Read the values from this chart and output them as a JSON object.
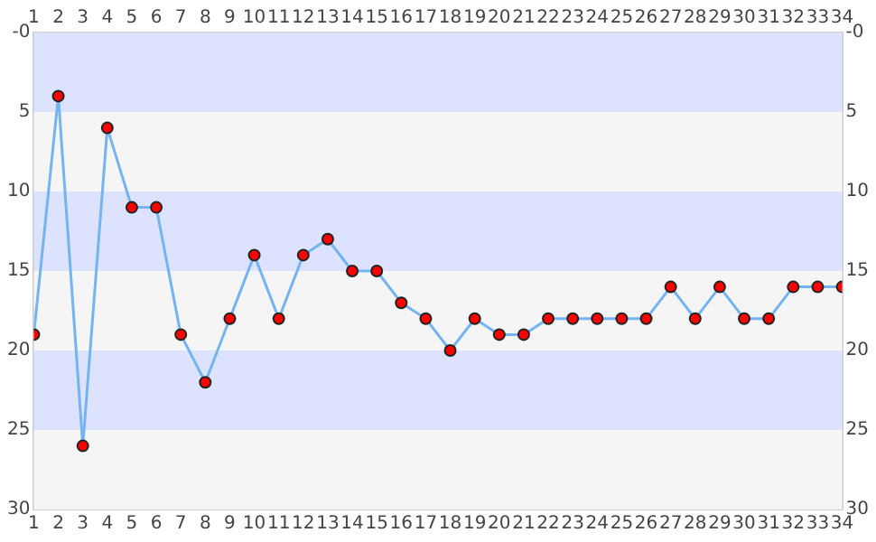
{
  "chart_data": {
    "type": "line",
    "x": [
      1,
      2,
      3,
      4,
      5,
      6,
      7,
      8,
      9,
      10,
      11,
      12,
      13,
      14,
      15,
      16,
      17,
      18,
      19,
      20,
      21,
      22,
      23,
      24,
      25,
      26,
      27,
      28,
      29,
      30,
      31,
      32,
      33,
      34
    ],
    "series": [
      {
        "color": "#74b4f0",
        "colors": [
          "#ff0000",
          "#ff0000",
          "#ff0000",
          "#ff0000",
          "#ff0000",
          "#ff0000",
          "#ff0000",
          "#ff0000",
          "#ff0000",
          "#ff0000",
          "#ff0000",
          "#ff0000",
          "#ff0000",
          "#ff0000",
          "#ff0000",
          "#ff0000",
          "#ff0000",
          "#ff0000",
          "#ff0000",
          "#ff0000",
          "#ff0000",
          "#ff0000",
          "#ff0000",
          "#ff0000",
          "#ff0000",
          "#ff0000",
          "#ff0000",
          "#ff0000",
          "#ff0000",
          "#ff0000",
          "#ff0000",
          "#ff0000",
          "#ff0000",
          "#ff0000"
        ],
        "values": [
          19,
          4,
          26,
          6,
          11,
          11,
          19,
          22,
          18,
          14,
          18,
          14,
          13,
          15,
          15,
          17,
          18,
          20,
          18,
          19,
          19,
          18,
          18,
          18,
          18,
          18,
          16,
          18,
          16,
          18,
          18,
          16,
          16,
          16
        ]
      }
    ],
    "xlim": [
      1,
      34
    ],
    "xticks": [
      1,
      2,
      3,
      4,
      5,
      6,
      7,
      8,
      9,
      10,
      11,
      12,
      13,
      14,
      15,
      16,
      17,
      18,
      19,
      20,
      21,
      22,
      23,
      24,
      25,
      26,
      27,
      28,
      29,
      30,
      31,
      32,
      33,
      34
    ],
    "x2lim": [
      1,
      34
    ],
    "x2ticks": [
      1,
      2,
      3,
      4,
      5,
      6,
      7,
      8,
      9,
      10,
      11,
      12,
      13,
      14,
      15,
      16,
      17,
      18,
      19,
      20,
      21,
      22,
      23,
      24,
      25,
      26,
      27,
      28,
      29,
      30,
      31,
      32,
      33,
      34
    ],
    "ylim": [
      30,
      0
    ],
    "yticks": [
      {
        "value": 0,
        "label": "-0"
      },
      5,
      10,
      15,
      20,
      25,
      30
    ],
    "y2lim": [
      30,
      0
    ],
    "y2ticks": [
      {
        "value": 0,
        "label": "-0"
      },
      5,
      10,
      15,
      20,
      25,
      30
    ],
    "bands": [
      {
        "axis": "y",
        "from": 0,
        "to": 5,
        "color": "#dde3ff"
      },
      {
        "axis": "y",
        "from": 5,
        "to": 10,
        "color": "#f5f5f5"
      },
      {
        "axis": "y",
        "from": 10,
        "to": 15,
        "color": "#dde3ff"
      },
      {
        "axis": "y",
        "from": 15,
        "to": 20,
        "color": "#f5f5f5"
      },
      {
        "axis": "y",
        "from": 20,
        "to": 25,
        "color": "#dde3ff"
      },
      {
        "axis": "y",
        "from": 25,
        "to": 30,
        "color": "#f5f5f5"
      }
    ],
    "legend": false,
    "marker": "circle",
    "line_style": "solid"
  }
}
